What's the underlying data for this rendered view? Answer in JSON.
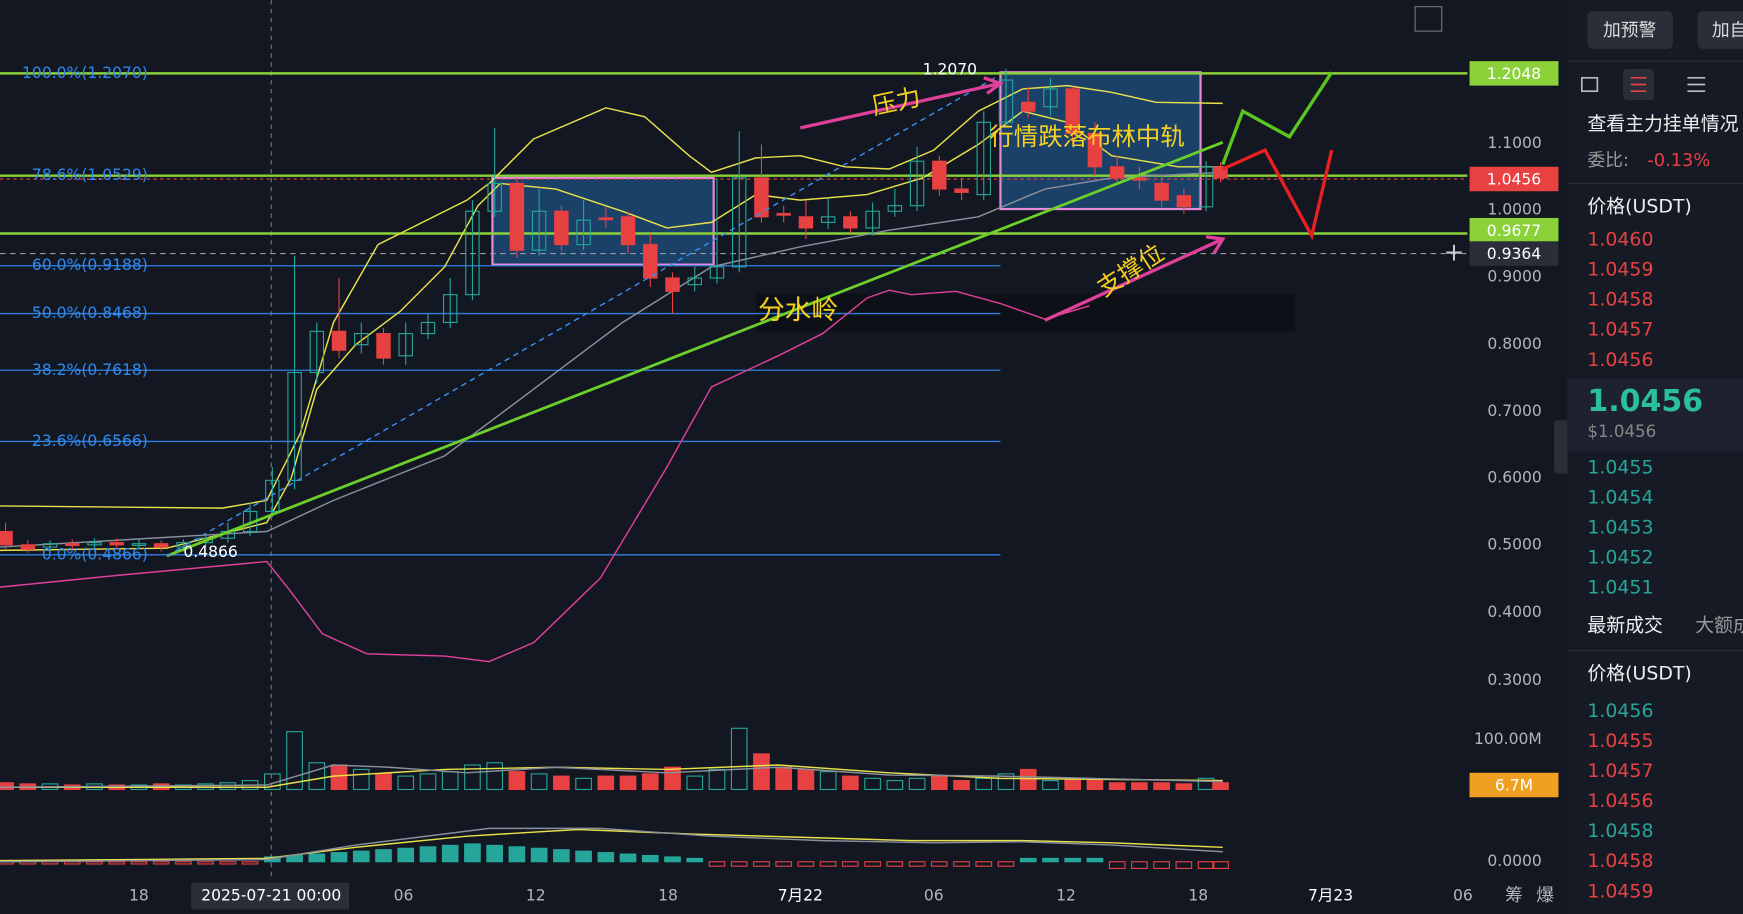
{
  "chart": {
    "fib_labels": [
      "100.0%(1.2070)",
      "78.6%(1.0529)",
      "60.0%(0.9188)",
      "50.0%(0.8468)",
      "38.2%(0.7618)",
      "23.6%(0.6566)",
      "0.0%(0.4866)"
    ],
    "high_label": "1.2070",
    "low_label": "0.4866",
    "annotations": [
      "压力",
      "行情跌落布林中轨",
      "分水岭",
      "支撑位"
    ],
    "price_axis": [
      "1.1000",
      "1.0000",
      "0.9000",
      "0.8000",
      "0.7000",
      "0.6000",
      "0.5000",
      "0.4000",
      "0.3000"
    ],
    "volume_axis": [
      "100.00M",
      "0.0000"
    ],
    "price_tags": [
      {
        "label": "1.2048",
        "color": "#8bd23a"
      },
      {
        "label": "1.0456",
        "color": "#e84142"
      },
      {
        "label": "0.9677",
        "color": "#8bd23a"
      },
      {
        "label": "0.9364",
        "color": "#2a2e39"
      },
      {
        "label": "6.7M",
        "color": "#f0a020"
      }
    ],
    "time_axis": [
      "18",
      "2025-07-21 00:00",
      "06",
      "12",
      "18",
      "7月22",
      "06",
      "12",
      "18",
      "7月23",
      "06"
    ],
    "corner_buttons": [
      "筹",
      "爆"
    ]
  },
  "panel": {
    "buttons": [
      "加预警",
      "加自"
    ],
    "main_order_link": "查看主力挂单情况",
    "ratio_label": "委比:",
    "ratio_value": "-0.13%",
    "book_header": "价格(USDT)",
    "asks": [
      "1.0460",
      "1.0459",
      "1.0458",
      "1.0457",
      "1.0456"
    ],
    "last_price": "1.0456",
    "last_price_usd": "$1.0456",
    "bids": [
      "1.0455",
      "1.0454",
      "1.0453",
      "1.0452",
      "1.0451"
    ],
    "trade_tabs": [
      "最新成交",
      "大额成"
    ],
    "trades_header": "价格(USDT)",
    "trades": [
      {
        "price": "1.0456",
        "color": "#26a69a"
      },
      {
        "price": "1.0455",
        "color": "#e84142"
      },
      {
        "price": "1.0457",
        "color": "#e84142"
      },
      {
        "price": "1.0456",
        "color": "#e84142"
      },
      {
        "price": "1.0458",
        "color": "#26a69a"
      },
      {
        "price": "1.0458",
        "color": "#e84142"
      },
      {
        "price": "1.0459",
        "color": "#e84142"
      }
    ]
  }
}
